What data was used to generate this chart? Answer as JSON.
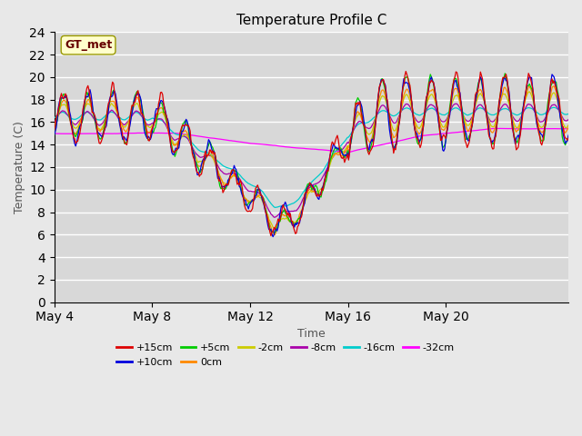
{
  "title": "Temperature Profile C",
  "xlabel": "Time",
  "ylabel": "Temperature (C)",
  "ylim": [
    0,
    24
  ],
  "yticks": [
    0,
    2,
    4,
    6,
    8,
    10,
    12,
    14,
    16,
    18,
    20,
    22,
    24
  ],
  "xtick_labels": [
    "May 4",
    "May 8",
    "May 12",
    "May 16",
    "May 20"
  ],
  "background_color": "#e8e8e8",
  "plot_bg_color": "#d8d8d8",
  "legend_label": "GT_met",
  "series": [
    {
      "label": "+15cm",
      "color": "#dd0000",
      "zorder": 9
    },
    {
      "label": "+10cm",
      "color": "#0000dd",
      "zorder": 8
    },
    {
      "label": "+5cm",
      "color": "#00cc00",
      "zorder": 7
    },
    {
      "label": "0cm",
      "color": "#ff8800",
      "zorder": 6
    },
    {
      "label": "-2cm",
      "color": "#cccc00",
      "zorder": 5
    },
    {
      "label": "-8cm",
      "color": "#aa00aa",
      "zorder": 4
    },
    {
      "label": "-16cm",
      "color": "#00cccc",
      "zorder": 3
    },
    {
      "label": "-32cm",
      "color": "#ff00ff",
      "zorder": 2
    }
  ],
  "n_points": 504,
  "dt_days": 21,
  "start_day": 4
}
